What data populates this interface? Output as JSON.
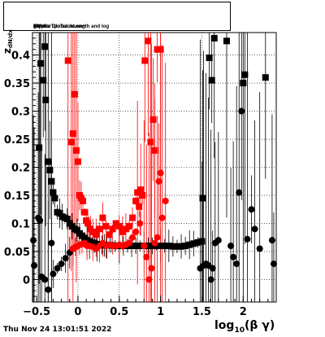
{
  "title": {
    "pre": "Fitted  z",
    "sub": "dN/dx",
    "mid": " versus TpcTrackLength and log",
    "log_sub": "10",
    "post": "(βγ) for Global muon+"
  },
  "footer": "Thu Nov 24 13:01:51 2022",
  "chart_data": {
    "type": "scatter",
    "title": "Fitted z_dN/dx versus TpcTrackLength and log10(βγ) for Global muon+",
    "xlabel": "log10(β γ)",
    "xlabel_main": "log",
    "xlabel_sub": "10",
    "xlabel_rest": "(β γ)",
    "ylabel": "z_dN/dx",
    "ylabel_main": "z",
    "ylabel_sub": "dN/dx",
    "xlim": [
      -0.55,
      2.4
    ],
    "ylim": [
      -0.04,
      0.44
    ],
    "xticks": [
      -0.5,
      0,
      0.5,
      1,
      1.5,
      2
    ],
    "xtick_labels": [
      "−0.5",
      "0",
      "0.5",
      "1",
      "1.5",
      "2"
    ],
    "yticks": [
      0,
      0.05,
      0.1,
      0.15,
      0.2,
      0.25,
      0.3,
      0.35,
      0.4
    ],
    "ytick_labels": [
      "0",
      "0.05",
      "0.1",
      "0.15",
      "0.2",
      "0.25",
      "0.3",
      "0.35",
      "0.4"
    ],
    "grid": true,
    "series": [
      {
        "marker": "square",
        "color": "#000000",
        "points": [
          [
            -0.47,
            0.235
          ],
          [
            -0.45,
            0.385
          ],
          [
            -0.42,
            0.355
          ],
          [
            -0.4,
            0.415
          ],
          [
            -0.39,
            0.32
          ],
          [
            -0.36,
            0.21
          ],
          [
            -0.34,
            0.195
          ],
          [
            -0.32,
            0.175
          ],
          [
            -0.3,
            0.155
          ],
          [
            -0.28,
            0.145
          ],
          [
            -0.25,
            0.12
          ],
          [
            -0.22,
            0.118
          ],
          [
            -0.19,
            0.112
          ],
          [
            -0.16,
            0.11
          ],
          [
            -0.13,
            0.108
          ],
          [
            -0.1,
            0.1
          ],
          [
            -0.07,
            0.095
          ],
          [
            -0.04,
            0.09
          ],
          [
            -0.01,
            0.088
          ],
          [
            0.02,
            0.082
          ],
          [
            0.05,
            0.078
          ],
          [
            0.08,
            0.074
          ],
          [
            0.11,
            0.07
          ],
          [
            0.14,
            0.068
          ],
          [
            0.17,
            0.066
          ],
          [
            0.2,
            0.065
          ],
          [
            0.23,
            0.063
          ],
          [
            0.26,
            0.062
          ],
          [
            0.29,
            0.062
          ],
          [
            0.32,
            0.061
          ],
          [
            0.35,
            0.061
          ],
          [
            0.4,
            0.061
          ],
          [
            0.45,
            0.06
          ],
          [
            0.5,
            0.06
          ],
          [
            0.55,
            0.06
          ],
          [
            0.6,
            0.06
          ],
          [
            0.65,
            0.06
          ],
          [
            0.7,
            0.06
          ],
          [
            0.75,
            0.06
          ],
          [
            0.8,
            0.06
          ],
          [
            0.85,
            0.06
          ],
          [
            0.9,
            0.06
          ],
          [
            0.95,
            0.06
          ],
          [
            1.0,
            0.06
          ],
          [
            1.05,
            0.06
          ],
          [
            1.1,
            0.06
          ],
          [
            1.15,
            0.059
          ],
          [
            1.2,
            0.059
          ],
          [
            1.25,
            0.059
          ],
          [
            1.3,
            0.06
          ],
          [
            1.35,
            0.062
          ],
          [
            1.4,
            0.064
          ],
          [
            1.45,
            0.066
          ],
          [
            1.5,
            0.068
          ],
          [
            1.51,
            0.145
          ],
          [
            1.59,
            0.395
          ],
          [
            1.62,
            0.355
          ],
          [
            1.65,
            0.43
          ],
          [
            1.8,
            0.425
          ],
          [
            2.02,
            0.365
          ],
          [
            2.0,
            0.35
          ],
          [
            2.27,
            0.36
          ]
        ]
      },
      {
        "marker": "circle",
        "color": "#000000",
        "points": [
          [
            -0.54,
            0.07
          ],
          [
            -0.53,
            0.025
          ],
          [
            -0.48,
            0.11
          ],
          [
            -0.46,
            0.105
          ],
          [
            -0.44,
            0.005
          ],
          [
            -0.4,
            0.0
          ],
          [
            -0.36,
            -0.018
          ],
          [
            -0.32,
            0.065
          ],
          [
            -0.3,
            0.01
          ],
          [
            -0.25,
            0.02
          ],
          [
            -0.2,
            0.028
          ],
          [
            -0.15,
            0.038
          ],
          [
            -0.1,
            0.048
          ],
          [
            -0.06,
            0.055
          ],
          [
            1.48,
            0.02
          ],
          [
            1.52,
            0.025
          ],
          [
            1.55,
            0.028
          ],
          [
            1.58,
            0.025
          ],
          [
            1.61,
            0.0
          ],
          [
            1.63,
            0.02
          ],
          [
            1.66,
            0.065
          ],
          [
            1.7,
            0.07
          ],
          [
            1.85,
            0.06
          ],
          [
            1.88,
            0.04
          ],
          [
            1.92,
            0.028
          ],
          [
            1.95,
            0.155
          ],
          [
            1.98,
            0.3
          ],
          [
            2.05,
            0.072
          ],
          [
            2.1,
            0.125
          ],
          [
            2.14,
            0.09
          ],
          [
            2.2,
            0.055
          ],
          [
            2.35,
            0.07
          ],
          [
            2.37,
            0.028
          ]
        ]
      },
      {
        "marker": "square",
        "color": "#ff0000",
        "points": [
          [
            -0.12,
            0.39
          ],
          [
            -0.08,
            0.245
          ],
          [
            -0.06,
            0.26
          ],
          [
            -0.04,
            0.33
          ],
          [
            -0.02,
            0.23
          ],
          [
            0.0,
            0.21
          ],
          [
            0.02,
            0.15
          ],
          [
            0.04,
            0.145
          ],
          [
            0.06,
            0.14
          ],
          [
            0.08,
            0.12
          ],
          [
            0.1,
            0.105
          ],
          [
            0.12,
            0.1
          ],
          [
            0.15,
            0.09
          ],
          [
            0.18,
            0.085
          ],
          [
            0.22,
            0.08
          ],
          [
            0.26,
            0.09
          ],
          [
            0.3,
            0.11
          ],
          [
            0.34,
            0.095
          ],
          [
            0.38,
            0.08
          ],
          [
            0.42,
            0.09
          ],
          [
            0.46,
            0.1
          ],
          [
            0.5,
            0.095
          ],
          [
            0.54,
            0.085
          ],
          [
            0.58,
            0.09
          ],
          [
            0.62,
            0.095
          ],
          [
            0.66,
            0.11
          ],
          [
            0.7,
            0.14
          ],
          [
            0.72,
            0.155
          ],
          [
            0.74,
            0.13
          ],
          [
            0.76,
            0.16
          ],
          [
            0.78,
            0.15
          ],
          [
            0.81,
            0.39
          ],
          [
            0.85,
            0.425
          ],
          [
            0.88,
            0.245
          ],
          [
            0.91,
            0.285
          ],
          [
            0.93,
            0.23
          ],
          [
            0.96,
            0.41
          ],
          [
            1.0,
            0.41
          ]
        ]
      },
      {
        "marker": "circle",
        "color": "#ff0000",
        "points": [
          [
            -0.06,
            0.055
          ],
          [
            -0.03,
            0.058
          ],
          [
            0.0,
            0.06
          ],
          [
            0.02,
            0.062
          ],
          [
            0.05,
            0.063
          ],
          [
            0.08,
            0.065
          ],
          [
            0.11,
            0.06
          ],
          [
            0.14,
            0.06
          ],
          [
            0.18,
            0.058
          ],
          [
            0.22,
            0.055
          ],
          [
            0.26,
            0.06
          ],
          [
            0.3,
            0.065
          ],
          [
            0.34,
            0.06
          ],
          [
            0.38,
            0.062
          ],
          [
            0.42,
            0.06
          ],
          [
            0.46,
            0.06
          ],
          [
            0.5,
            0.062
          ],
          [
            0.54,
            0.06
          ],
          [
            0.58,
            0.062
          ],
          [
            0.62,
            0.065
          ],
          [
            0.66,
            0.075
          ],
          [
            0.7,
            0.085
          ],
          [
            0.75,
            0.1
          ],
          [
            0.8,
            0.06
          ],
          [
            0.83,
            0.04
          ],
          [
            0.86,
            0.0
          ],
          [
            0.89,
            0.02
          ],
          [
            0.93,
            0.065
          ],
          [
            0.96,
            0.075
          ],
          [
            0.98,
            0.175
          ],
          [
            1.0,
            0.19
          ],
          [
            1.02,
            0.11
          ],
          [
            1.06,
            0.14
          ]
        ]
      }
    ]
  }
}
